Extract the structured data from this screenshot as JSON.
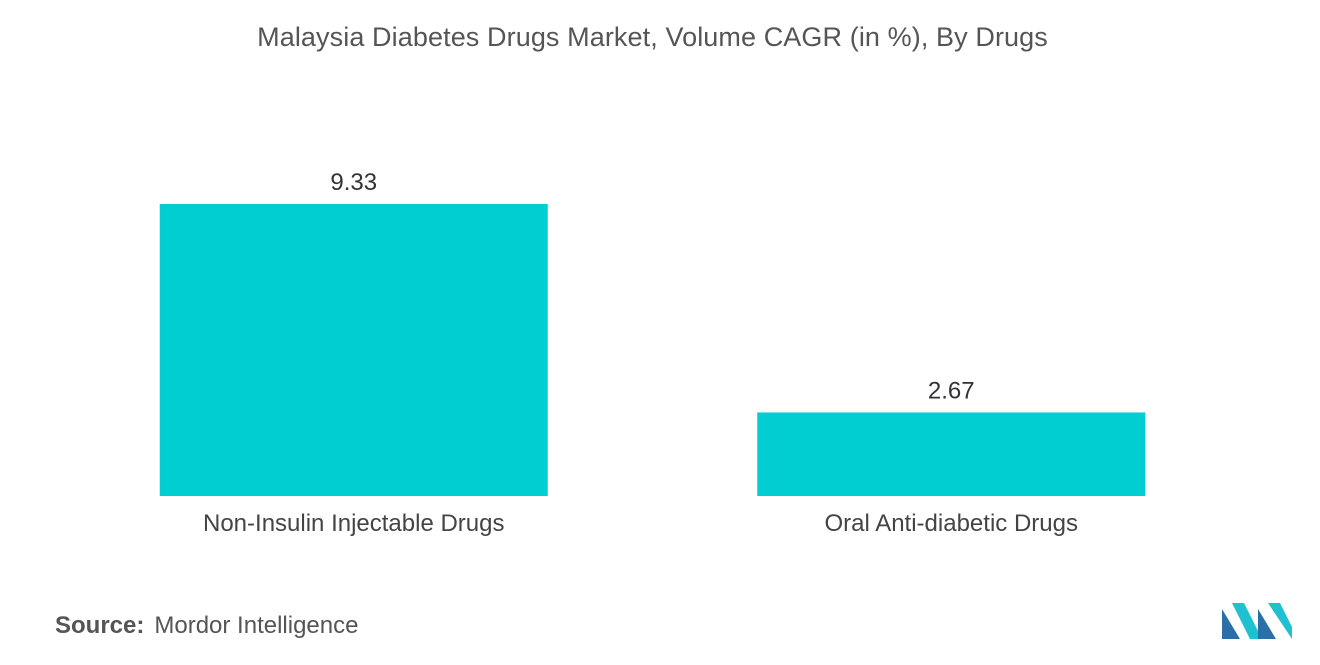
{
  "colors": {
    "bar": "#00CED1",
    "logo_dark": "#2A6FA8",
    "logo_light": "#1FC0D0"
  },
  "source": {
    "prefix": "Source:",
    "name": "Mordor Intelligence"
  },
  "logo": {
    "icon": "mordor-intelligence-logo-icon"
  },
  "chart_data": {
    "type": "bar",
    "title": "Malaysia Diabetes Drugs Market, Volume CAGR (in %), By Drugs",
    "categories": [
      "Non-Insulin Injectable Drugs",
      "Oral Anti-diabetic Drugs"
    ],
    "values": [
      9.33,
      2.67
    ],
    "value_labels": [
      "9.33",
      "2.67"
    ],
    "xlabel": "",
    "ylabel": "",
    "ylim": [
      0,
      9.33
    ],
    "grid": false,
    "legend": "none"
  }
}
